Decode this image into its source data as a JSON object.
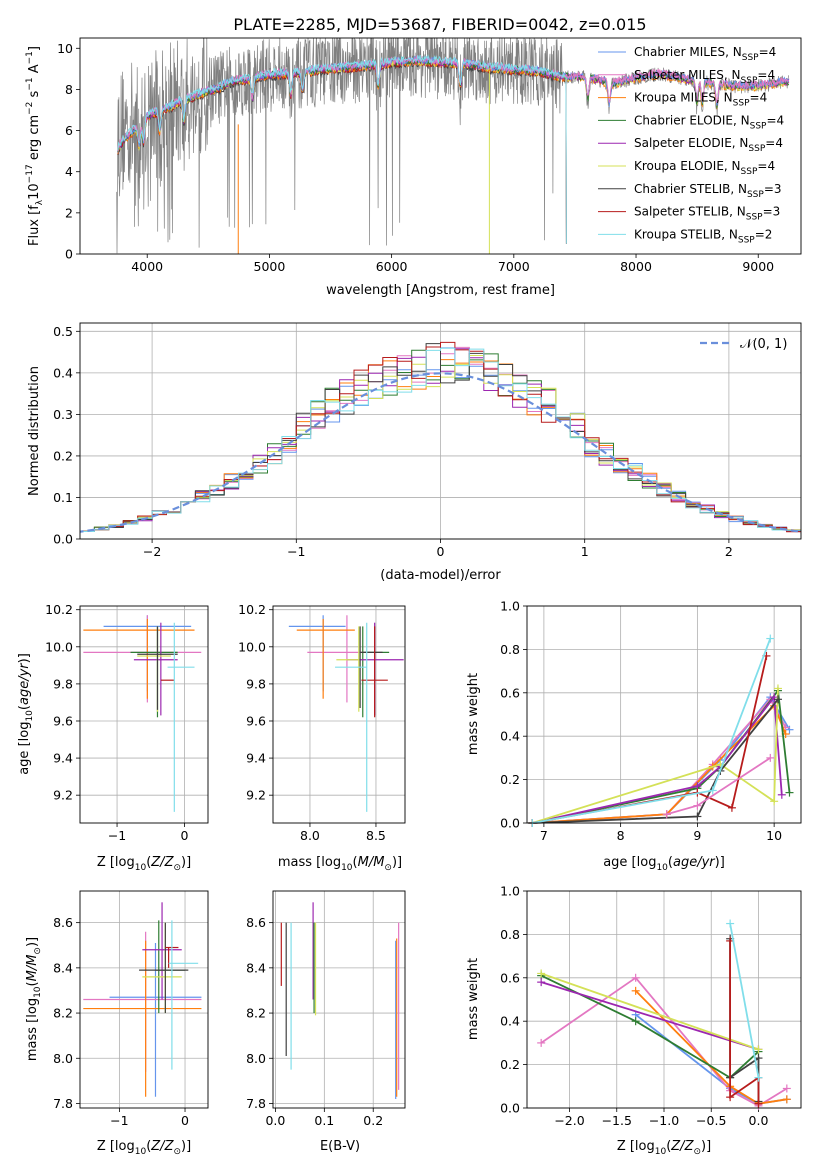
{
  "figure_title": "PLATE=2285, MJD=53687, FIBERID=0042, z=0.015",
  "colors": {
    "Chabrier MILES": "#6495ed",
    "Salpeter MILES": "#e377c2",
    "Kroupa MILES": "#ff7f0e",
    "Chabrier ELODIE": "#2e7d32",
    "Salpeter ELODIE": "#9c27b0",
    "Kroupa ELODIE": "#d4e157",
    "Chabrier STELIB": "#404040",
    "Salpeter STELIB": "#b71c1c",
    "Kroupa STELIB": "#80deea",
    "data": "#808080",
    "normal": "#6a8fdb"
  },
  "legend_entries": [
    {
      "name": "Chabrier MILES",
      "nssp": "4"
    },
    {
      "name": "Salpeter MILES",
      "nssp": "4"
    },
    {
      "name": "Kroupa MILES",
      "nssp": "4"
    },
    {
      "name": "Chabrier ELODIE",
      "nssp": "4"
    },
    {
      "name": "Salpeter ELODIE",
      "nssp": "4"
    },
    {
      "name": "Kroupa ELODIE",
      "nssp": "4"
    },
    {
      "name": "Chabrier STELIB",
      "nssp": "3"
    },
    {
      "name": "Salpeter STELIB",
      "nssp": "3"
    },
    {
      "name": "Kroupa STELIB",
      "nssp": "2"
    }
  ],
  "chart_data": [
    {
      "id": "spectrum",
      "type": "line",
      "xlabel": "wavelength [Angstrom, rest frame]",
      "ylabel": "Flux [f_λ10^-17 erg cm^-2 s^-1 A^-1]",
      "xlim": [
        3450,
        9350
      ],
      "ylim": [
        0,
        10.5
      ],
      "xticks": [
        4000,
        5000,
        6000,
        7000,
        8000,
        9000
      ],
      "yticks": [
        0,
        2,
        4,
        6,
        8,
        10
      ],
      "grid": false,
      "legend_position": "right",
      "continuum": {
        "x": [
          3750,
          3800,
          3900,
          4000,
          4100,
          4200,
          4300,
          4400,
          4500,
          4600,
          4700,
          4800,
          4900,
          5000,
          5200,
          5400,
          5600,
          5800,
          6000,
          6200,
          6400,
          6600,
          6800,
          7000,
          7200,
          7400,
          7500,
          7600,
          7700,
          7800,
          8000,
          8200,
          8400,
          8600,
          8800,
          9000,
          9200
        ],
        "y": [
          5.6,
          6.0,
          6.3,
          6.7,
          7.0,
          7.2,
          7.5,
          7.7,
          7.9,
          8.1,
          8.4,
          8.5,
          8.6,
          8.7,
          8.8,
          8.95,
          9.05,
          9.15,
          9.3,
          9.4,
          9.3,
          9.25,
          9.05,
          8.95,
          8.9,
          8.6,
          8.6,
          8.6,
          8.45,
          8.25,
          8.55,
          8.75,
          8.5,
          8.3,
          8.15,
          8.15,
          8.35
        ]
      },
      "absorption_features": [
        3934,
        3969,
        4102,
        4300,
        4861,
        5175,
        5270,
        5890,
        6563,
        7605,
        7780,
        8498,
        8542,
        8662
      ]
    },
    {
      "id": "residuals",
      "type": "line",
      "xlabel": "(data-model)/error",
      "ylabel": "Normed distribution",
      "xlim": [
        -2.5,
        2.5
      ],
      "ylim": [
        0,
        0.52
      ],
      "xticks": [
        -2,
        -1,
        0,
        1,
        2
      ],
      "yticks": [
        0.0,
        0.1,
        0.2,
        0.3,
        0.4,
        0.5
      ],
      "grid": true,
      "legend_position": "top-right",
      "legend_label": "𝒩(0, 1)",
      "bin_width": 0.1,
      "normal_pdf": {
        "mu": 0,
        "sigma": 1
      }
    },
    {
      "id": "age_vs_Z",
      "type": "scatter",
      "xlabel": "Z [log₁₀(Z/Z☉)]",
      "ylabel": "age  [log₁₀(age/yr)]",
      "xlim": [
        -1.55,
        0.35
      ],
      "ylim": [
        9.05,
        10.22
      ],
      "xticks": [
        -1,
        0
      ],
      "yticks": [
        9.2,
        9.4,
        9.6,
        9.8,
        10.0,
        10.2
      ],
      "grid": true,
      "errorbars": [
        {
          "series": "Chabrier MILES",
          "x": -0.55,
          "xerr": [
            0.65,
            0.65
          ],
          "y": 10.11,
          "yerr": [
            0.35,
            0.06
          ]
        },
        {
          "series": "Salpeter MILES",
          "x": -0.55,
          "xerr": [
            0.95,
            0.8
          ],
          "y": 9.97,
          "yerr": [
            0.27,
            0.2
          ]
        },
        {
          "series": "Kroupa MILES",
          "x": -0.55,
          "xerr": [
            0.95,
            0.7
          ],
          "y": 10.09,
          "yerr": [
            0.37,
            0.06
          ]
        },
        {
          "series": "Chabrier ELODIE",
          "x": -0.4,
          "xerr": [
            0.4,
            0.3
          ],
          "y": 9.97,
          "yerr": [
            0.35,
            0.14
          ]
        },
        {
          "series": "Salpeter ELODIE",
          "x": -0.35,
          "xerr": [
            0.4,
            0.25
          ],
          "y": 9.93,
          "yerr": [
            0.3,
            0.2
          ]
        },
        {
          "series": "Kroupa ELODIE",
          "x": -0.4,
          "xerr": [
            0.3,
            0.2
          ],
          "y": 9.95,
          "yerr": [
            0.3,
            0.16
          ]
        },
        {
          "series": "Chabrier STELIB",
          "x": -0.4,
          "xerr": [
            0.3,
            0.3
          ],
          "y": 9.96,
          "yerr": [
            0.3,
            0.15
          ]
        },
        {
          "series": "Salpeter STELIB",
          "x": -0.25,
          "xerr": [
            0.1,
            0.1
          ],
          "y": 9.82,
          "yerr": [
            0.0,
            0.0
          ]
        },
        {
          "series": "Kroupa STELIB",
          "x": -0.15,
          "xerr": [
            0.1,
            0.3
          ],
          "y": 9.89,
          "yerr": [
            0.78,
            0.24
          ]
        }
      ]
    },
    {
      "id": "age_vs_mass",
      "type": "scatter",
      "xlabel": "mass [log₁₀(M/M☉)]",
      "ylabel": "",
      "xlim": [
        7.72,
        8.72
      ],
      "ylim": [
        9.05,
        10.22
      ],
      "xticks": [
        8.0,
        8.5
      ],
      "yticks": [
        9.2,
        9.4,
        9.6,
        9.8,
        10.0,
        10.2
      ],
      "grid": true,
      "errorbars": [
        {
          "series": "Chabrier MILES",
          "x": 8.1,
          "xerr": [
            0.26,
            0.17
          ],
          "y": 10.11,
          "yerr": [
            0.35,
            0.06
          ]
        },
        {
          "series": "Salpeter MILES",
          "x": 8.28,
          "xerr": [
            0.3,
            0.18
          ],
          "y": 9.97,
          "yerr": [
            0.27,
            0.2
          ]
        },
        {
          "series": "Kroupa MILES",
          "x": 8.1,
          "xerr": [
            0.2,
            0.24
          ],
          "y": 10.09,
          "yerr": [
            0.37,
            0.06
          ]
        },
        {
          "series": "Chabrier ELODIE",
          "x": 8.4,
          "xerr": [
            0.0,
            0.2
          ],
          "y": 9.97,
          "yerr": [
            0.35,
            0.14
          ]
        },
        {
          "series": "Salpeter ELODIE",
          "x": 8.49,
          "xerr": [
            0.21,
            0.22
          ],
          "y": 9.93,
          "yerr": [
            0.3,
            0.2
          ]
        },
        {
          "series": "Kroupa ELODIE",
          "x": 8.37,
          "xerr": [
            0.17,
            0.0
          ],
          "y": 9.93,
          "yerr": [
            0.28,
            0.18
          ]
        },
        {
          "series": "Chabrier STELIB",
          "x": 8.38,
          "xerr": [
            0.0,
            0.17
          ],
          "y": 9.97,
          "yerr": [
            0.3,
            0.14
          ]
        },
        {
          "series": "Salpeter STELIB",
          "x": 8.49,
          "xerr": [
            0.1,
            0.1
          ],
          "y": 9.82,
          "yerr": [
            0.2,
            0.29
          ]
        },
        {
          "series": "Kroupa STELIB",
          "x": 8.43,
          "xerr": [
            0.24,
            0.0
          ],
          "y": 9.89,
          "yerr": [
            0.78,
            0.24
          ]
        }
      ]
    },
    {
      "id": "mass_weight_vs_age",
      "type": "line",
      "xlabel": "age  [log₁₀(age/yr)]",
      "ylabel": "mass weight",
      "xlim": [
        6.78,
        10.35
      ],
      "ylim": [
        0,
        1
      ],
      "xticks": [
        7,
        8,
        9,
        10
      ],
      "yticks": [
        0.0,
        0.2,
        0.4,
        0.6,
        0.8,
        1.0
      ],
      "grid": true,
      "series": [
        {
          "name": "Chabrier MILES",
          "x": [
            6.85,
            8.6,
            9.3,
            9.95,
            10.2
          ],
          "y": [
            0.0,
            0.04,
            0.29,
            0.58,
            0.43
          ]
        },
        {
          "name": "Salpeter MILES",
          "x": [
            6.85,
            8.6,
            9.2,
            9.95,
            10.15
          ],
          "y": [
            0.0,
            0.04,
            0.27,
            0.57,
            0.44
          ]
        },
        {
          "name": "Kroupa MILES",
          "x": [
            6.85,
            8.6,
            9.2,
            10.0,
            10.15
          ],
          "y": [
            0.0,
            0.04,
            0.26,
            0.54,
            0.41
          ]
        },
        {
          "name": "Chabrier ELODIE",
          "x": [
            6.85,
            9.0,
            9.3,
            10.05,
            10.2
          ],
          "y": [
            0.0,
            0.16,
            0.26,
            0.61,
            0.14
          ]
        },
        {
          "name": "Salpeter ELODIE",
          "x": [
            6.85,
            9.0,
            9.3,
            10.0,
            10.1
          ],
          "y": [
            0.0,
            0.17,
            0.26,
            0.58,
            0.13
          ]
        },
        {
          "name": "Kroupa ELODIE",
          "x": [
            6.85,
            9.3,
            10.0,
            10.05
          ],
          "y": [
            0.0,
            0.27,
            0.1,
            0.62
          ]
        },
        {
          "name": "Chabrier STELIB",
          "x": [
            6.85,
            9.0,
            9.3,
            10.05
          ],
          "y": [
            0.0,
            0.03,
            0.24,
            0.57
          ]
        },
        {
          "name": "Salpeter STELIB",
          "x": [
            6.85,
            9.0,
            9.45,
            9.9
          ],
          "y": [
            0.0,
            0.14,
            0.07,
            0.77
          ]
        },
        {
          "name": "Kroupa STELIB",
          "x": [
            6.85,
            9.2,
            9.95
          ],
          "y": [
            0.0,
            0.15,
            0.85
          ]
        },
        {
          "name": "Salpeter MILES",
          "x": [
            8.6,
            9.0,
            9.95
          ],
          "y": [
            0.04,
            0.08,
            0.3
          ]
        }
      ]
    },
    {
      "id": "mass_vs_Z",
      "type": "scatter",
      "xlabel": "Z [log₁₀(Z/Z☉)]",
      "ylabel": "mass [log₁₀(M/M☉)]",
      "xlim": [
        -1.6,
        0.35
      ],
      "ylim": [
        7.78,
        8.74
      ],
      "xticks": [
        -1,
        0
      ],
      "yticks": [
        7.8,
        8.0,
        8.2,
        8.4,
        8.6
      ],
      "grid": true,
      "errorbars": [
        {
          "series": "Chabrier MILES",
          "x": -0.45,
          "xerr": [
            0.7,
            0.7
          ],
          "y": 8.27,
          "yerr": [
            0.44,
            0.24
          ]
        },
        {
          "series": "Salpeter MILES",
          "x": -0.6,
          "xerr": [
            0.95,
            0.85
          ],
          "y": 8.26,
          "yerr": [
            0.32,
            0.3
          ]
        },
        {
          "series": "Kroupa MILES",
          "x": -0.6,
          "xerr": [
            0.95,
            0.85
          ],
          "y": 8.22,
          "yerr": [
            0.39,
            0.3
          ]
        },
        {
          "series": "Chabrier ELODIE",
          "x": -0.4,
          "xerr": [
            0.05,
            0.4
          ],
          "y": 8.39,
          "yerr": [
            0.19,
            0.22
          ]
        },
        {
          "series": "Salpeter ELODIE",
          "x": -0.35,
          "xerr": [
            0.3,
            0.3
          ],
          "y": 8.48,
          "yerr": [
            0.22,
            0.21
          ]
        },
        {
          "series": "Kroupa ELODIE",
          "x": -0.3,
          "xerr": [
            0.35,
            0.25
          ],
          "y": 8.36,
          "yerr": [
            0.16,
            0.24
          ]
        },
        {
          "series": "Chabrier STELIB",
          "x": -0.3,
          "xerr": [
            0.4,
            0.35
          ],
          "y": 8.39,
          "yerr": [
            0.19,
            0.21
          ]
        },
        {
          "series": "Salpeter STELIB",
          "x": -0.25,
          "xerr": [
            0.05,
            0.15
          ],
          "y": 8.49,
          "yerr": [
            0.09,
            0.0
          ]
        },
        {
          "series": "Kroupa STELIB",
          "x": -0.2,
          "xerr": [
            0.05,
            0.4
          ],
          "y": 8.42,
          "yerr": [
            0.47,
            0.19
          ]
        }
      ]
    },
    {
      "id": "mass_vs_ebv",
      "type": "scatter",
      "xlabel": "E(B-V)",
      "ylabel": "",
      "xlim": [
        -0.005,
        0.265
      ],
      "ylim": [
        7.78,
        8.74
      ],
      "xticks": [
        0.0,
        0.1,
        0.2
      ],
      "yticks": [
        7.8,
        8.0,
        8.2,
        8.4,
        8.6
      ],
      "grid": true,
      "errorbars": [
        {
          "series": "Salpeter STELIB",
          "x": 0.012,
          "y": 8.46,
          "yerr": [
            0.14,
            0.14
          ]
        },
        {
          "series": "Chabrier STELIB",
          "x": 0.022,
          "y": 8.31,
          "yerr": [
            0.3,
            0.29
          ]
        },
        {
          "series": "Kroupa STELIB",
          "x": 0.032,
          "y": 8.27,
          "yerr": [
            0.32,
            0.33
          ]
        },
        {
          "series": "Salpeter ELODIE",
          "x": 0.077,
          "y": 8.48,
          "yerr": [
            0.22,
            0.21
          ]
        },
        {
          "series": "Chabrier ELODIE",
          "x": 0.079,
          "y": 8.4,
          "yerr": [
            0.2,
            0.2
          ]
        },
        {
          "series": "Kroupa ELODIE",
          "x": 0.082,
          "y": 8.4,
          "yerr": [
            0.21,
            0.2
          ]
        },
        {
          "series": "Chabrier MILES",
          "x": 0.246,
          "y": 8.19,
          "yerr": [
            0.37,
            0.33
          ]
        },
        {
          "series": "Kroupa MILES",
          "x": 0.248,
          "y": 8.2,
          "yerr": [
            0.37,
            0.33
          ]
        },
        {
          "series": "Salpeter MILES",
          "x": 0.252,
          "y": 8.25,
          "yerr": [
            0.39,
            0.35
          ]
        }
      ]
    },
    {
      "id": "mass_weight_vs_Z",
      "type": "line",
      "xlabel": "Z [log₁₀(Z/Z☉)]",
      "ylabel": "mass weight",
      "xlim": [
        -2.45,
        0.45
      ],
      "ylim": [
        0,
        1
      ],
      "xticks": [
        -2.0,
        -1.5,
        -1.0,
        -0.5,
        0.0
      ],
      "xticklabels": [
        "−2.0",
        "−1.5",
        "−1.0",
        "−0.5",
        "0.0"
      ],
      "yticks": [
        0.0,
        0.2,
        0.4,
        0.6,
        0.8,
        1.0
      ],
      "grid": true,
      "series": [
        {
          "name": "Chabrier MILES",
          "x": [
            -1.3,
            -0.3,
            0.0,
            0.3
          ],
          "y": [
            0.43,
            0.09,
            0.02,
            0.04
          ]
        },
        {
          "name": "Salpeter MILES",
          "x": [
            -2.3,
            -1.3,
            -0.3,
            0.0,
            0.3
          ],
          "y": [
            0.3,
            0.6,
            0.08,
            0.01,
            0.09
          ]
        },
        {
          "name": "Kroupa MILES",
          "x": [
            -1.3,
            -0.3,
            0.0,
            0.3
          ],
          "y": [
            0.54,
            0.1,
            0.02,
            0.04
          ]
        },
        {
          "name": "Chabrier ELODIE",
          "x": [
            -2.3,
            -1.3,
            -0.3,
            0.0
          ],
          "y": [
            0.61,
            0.4,
            0.14,
            0.26
          ]
        },
        {
          "name": "Salpeter ELODIE",
          "x": [
            -2.3,
            0.0
          ],
          "y": [
            0.58,
            0.27
          ]
        },
        {
          "name": "Kroupa ELODIE",
          "x": [
            -2.3,
            0.0
          ],
          "y": [
            0.62,
            0.27
          ]
        },
        {
          "name": "Chabrier STELIB",
          "x": [
            -0.3,
            -0.3,
            0.0,
            0.0
          ],
          "y": [
            0.78,
            0.14,
            0.23,
            0.03
          ]
        },
        {
          "name": "Salpeter STELIB",
          "x": [
            -0.3,
            -0.3,
            0.0,
            0.0
          ],
          "y": [
            0.77,
            0.05,
            0.14,
            0.02
          ]
        },
        {
          "name": "Kroupa STELIB",
          "x": [
            -0.3,
            0.0
          ],
          "y": [
            0.85,
            0.14
          ]
        }
      ]
    }
  ]
}
